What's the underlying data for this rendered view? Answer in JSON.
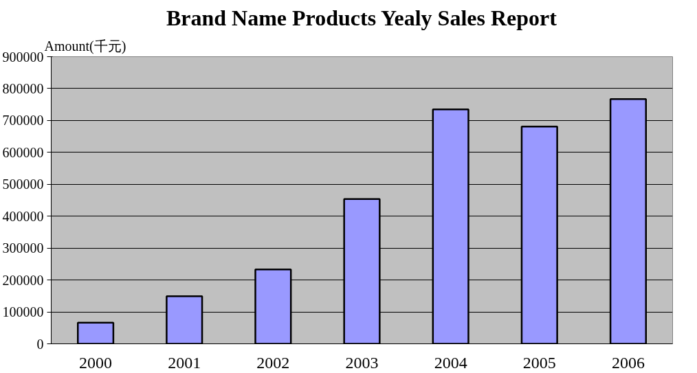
{
  "chart_data": {
    "type": "bar",
    "title": "Brand Name Products Yealy Sales Report",
    "ylabel": "Amount(千元)",
    "categories": [
      "2000",
      "2001",
      "2002",
      "2003",
      "2004",
      "2005",
      "2006"
    ],
    "values": [
      66000,
      149000,
      233000,
      454000,
      735000,
      681000,
      767000
    ],
    "color": "#9999ff",
    "ylim": [
      0,
      900000
    ],
    "yticks": [
      0,
      100000,
      200000,
      300000,
      400000,
      500000,
      600000,
      700000,
      800000,
      900000
    ],
    "grid": "y"
  }
}
